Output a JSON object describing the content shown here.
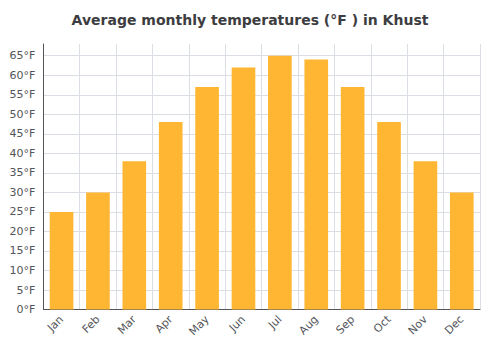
{
  "chart_data": {
    "type": "bar",
    "title": "Average monthly temperatures (°F ) in Khust",
    "categories": [
      "Jan",
      "Feb",
      "Mar",
      "Apr",
      "May",
      "Jun",
      "Jul",
      "Aug",
      "Sep",
      "Oct",
      "Nov",
      "Dec"
    ],
    "values": [
      25,
      30,
      38,
      48,
      57,
      62,
      65,
      64,
      57,
      48,
      38,
      30
    ],
    "color": "#FFB733",
    "ylim": [
      0,
      68
    ],
    "yticks": [
      {
        "value": 0,
        "label": "0°F"
      },
      {
        "value": 5,
        "label": "5°F"
      },
      {
        "value": 10,
        "label": "10°F"
      },
      {
        "value": 15,
        "label": "15°F"
      },
      {
        "value": 20,
        "label": "20°F"
      },
      {
        "value": 25,
        "label": "25°F"
      },
      {
        "value": 30,
        "label": "30°F"
      },
      {
        "value": 35,
        "label": "35°F"
      },
      {
        "value": 40,
        "label": "40°F"
      },
      {
        "value": 45,
        "label": "45°F"
      },
      {
        "value": 50,
        "label": "50°F"
      },
      {
        "value": 55,
        "label": "55°F"
      },
      {
        "value": 60,
        "label": "60°F"
      },
      {
        "value": 65,
        "label": "65°F"
      }
    ],
    "grid": true
  }
}
